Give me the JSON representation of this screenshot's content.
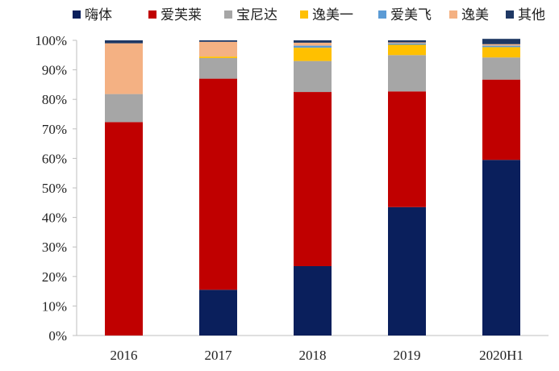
{
  "chart_data": {
    "type": "bar",
    "stacked": true,
    "categories": [
      "2016",
      "2017",
      "2018",
      "2019",
      "2020H1"
    ],
    "ylim": [
      0,
      100
    ],
    "yticks": [
      "0%",
      "10%",
      "20%",
      "30%",
      "40%",
      "50%",
      "60%",
      "70%",
      "80%",
      "90%",
      "100%"
    ],
    "legend_position": "top",
    "grid": false,
    "series": [
      {
        "name": "嗨体",
        "color": "#0a1f5c",
        "values": [
          0.0,
          15.5,
          23.5,
          43.5,
          59.5
        ]
      },
      {
        "name": "爱芙莱",
        "color": "#c00000",
        "values": [
          72.3,
          71.5,
          59.0,
          39.2,
          27.2
        ]
      },
      {
        "name": "宝尼达",
        "color": "#a6a6a6",
        "values": [
          9.5,
          7.0,
          10.5,
          12.3,
          7.5
        ]
      },
      {
        "name": "逸美一",
        "color": "#ffc000",
        "values": [
          0.0,
          0.5,
          4.5,
          3.5,
          3.5
        ]
      },
      {
        "name": "爱美飞",
        "color": "#5b9bd5",
        "values": [
          0.0,
          0.0,
          0.7,
          0.5,
          0.5
        ]
      },
      {
        "name": "逸美",
        "color": "#f4b183",
        "values": [
          17.2,
          5.0,
          1.0,
          0.3,
          0.5
        ]
      },
      {
        "name": "其他",
        "color": "#1f3864",
        "values": [
          1.0,
          0.5,
          0.8,
          0.7,
          1.8
        ]
      }
    ]
  }
}
